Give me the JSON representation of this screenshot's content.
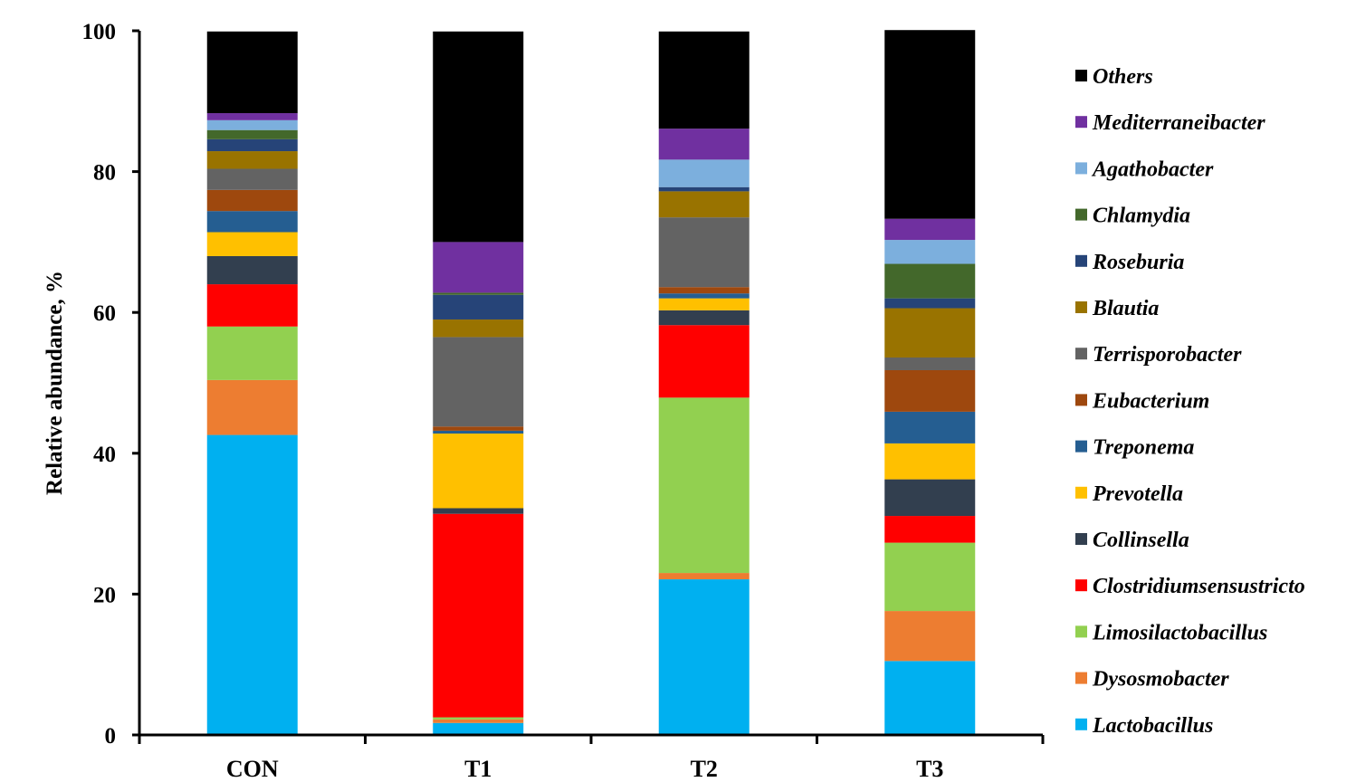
{
  "chart_data": {
    "type": "bar",
    "stacked": true,
    "categories": [
      "CON",
      "T1",
      "T2",
      "T3"
    ],
    "ylabel": "Relative abundance, %",
    "xlabel": "",
    "ylim": [
      0,
      100
    ],
    "yticks": [
      0,
      20,
      40,
      60,
      80,
      100
    ],
    "grid": false,
    "legend_position": "right",
    "series": [
      {
        "name": "Lactobacillus",
        "color": "#00B0F0",
        "values": [
          42.6,
          1.7,
          22.1,
          10.5
        ]
      },
      {
        "name": "Dysosmobacter",
        "color": "#ED7D31",
        "values": [
          7.8,
          0.5,
          0.9,
          7.1
        ]
      },
      {
        "name": "Limosilactobacillus",
        "color": "#92D050",
        "values": [
          7.6,
          0.3,
          24.9,
          9.7
        ]
      },
      {
        "name": "Clostridiumsensustricto",
        "color": "#FF0000",
        "values": [
          6.0,
          28.9,
          10.3,
          3.8
        ]
      },
      {
        "name": "Collinsella",
        "color": "#323F4F",
        "values": [
          4.0,
          0.8,
          2.1,
          5.2
        ]
      },
      {
        "name": "Prevotella",
        "color": "#FFC000",
        "values": [
          3.4,
          10.6,
          1.7,
          5.1
        ]
      },
      {
        "name": "Treponema",
        "color": "#255E91",
        "values": [
          3.0,
          0.4,
          0.7,
          4.5
        ]
      },
      {
        "name": "Eubacterium",
        "color": "#9E480E",
        "values": [
          3.0,
          0.6,
          0.9,
          5.9
        ]
      },
      {
        "name": "Terrisporobacter",
        "color": "#636363",
        "values": [
          3.0,
          12.7,
          9.9,
          1.8
        ]
      },
      {
        "name": "Blautia",
        "color": "#997300",
        "values": [
          2.5,
          2.5,
          3.7,
          7.0
        ]
      },
      {
        "name": "Roseburia",
        "color": "#264478",
        "values": [
          1.7,
          3.5,
          0.6,
          1.4
        ]
      },
      {
        "name": "Chlamydia",
        "color": "#43682B",
        "values": [
          1.3,
          0.3,
          0.0,
          4.9
        ]
      },
      {
        "name": "Agathobacter",
        "color": "#7CAFDD",
        "values": [
          1.4,
          0.0,
          3.9,
          3.4
        ]
      },
      {
        "name": "Mediterraneibacter",
        "color": "#7030A0",
        "values": [
          1.0,
          7.2,
          4.4,
          3.0
        ]
      },
      {
        "name": "Others",
        "color": "#000000",
        "values": [
          11.6,
          29.9,
          13.8,
          26.8
        ]
      }
    ]
  }
}
